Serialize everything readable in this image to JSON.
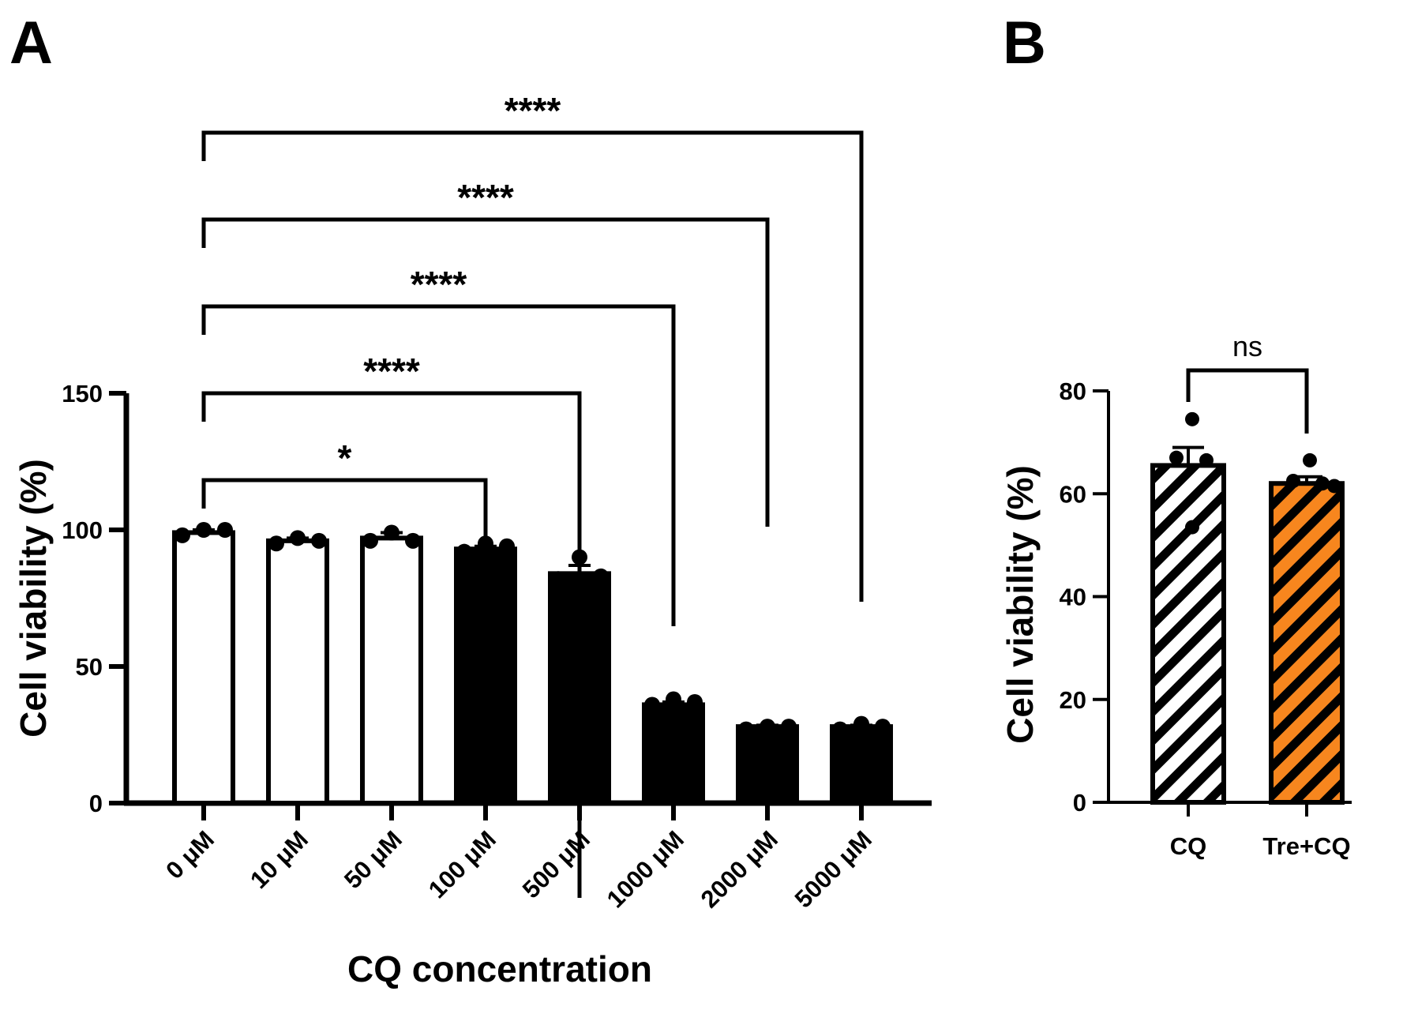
{
  "chart_data": [
    {
      "panel": "A",
      "type": "bar",
      "title": "",
      "xlabel": "CQ concentration",
      "ylabel": "Cell viability (%)",
      "ylim": [
        0,
        150
      ],
      "yticks": [
        0,
        50,
        100,
        150
      ],
      "grid": false,
      "categories": [
        "0 μM",
        "10 μM",
        "50 μM",
        "100 μM",
        "500 μM",
        "1000 μM",
        "2000 μM",
        "5000 μM"
      ],
      "values": [
        99,
        96,
        97,
        93,
        84,
        36,
        28,
        28
      ],
      "errors": [
        1,
        1,
        2,
        1,
        3,
        1,
        0.5,
        0.5
      ],
      "fills": [
        "white",
        "white",
        "white",
        "black",
        "black",
        "black",
        "black",
        "black"
      ],
      "points": [
        [
          98,
          100,
          100
        ],
        [
          95,
          97,
          96
        ],
        [
          96,
          99,
          96
        ],
        [
          92,
          95,
          94
        ],
        [
          82,
          90,
          83
        ],
        [
          36,
          38,
          37
        ],
        [
          27,
          28,
          28
        ],
        [
          27,
          29,
          28
        ]
      ],
      "comparisons": [
        {
          "from": "0 μM",
          "to": "100 μM",
          "label": "*"
        },
        {
          "from": "0 μM",
          "to": "500 μM",
          "label": "****"
        },
        {
          "from": "0 μM",
          "to": "1000 μM",
          "label": "****"
        },
        {
          "from": "0 μM",
          "to": "2000 μM",
          "label": "****"
        },
        {
          "from": "0 μM",
          "to": "5000 μM",
          "label": "****"
        }
      ]
    },
    {
      "panel": "B",
      "type": "bar",
      "title": "",
      "xlabel": "",
      "ylabel": "Cell viability (%)",
      "ylim": [
        0,
        80
      ],
      "yticks": [
        0,
        20,
        40,
        60,
        80
      ],
      "grid": false,
      "categories": [
        "CQ",
        "Tre+CQ"
      ],
      "values": [
        65.5,
        62
      ],
      "errors": [
        3.5,
        1.3
      ],
      "colors": [
        "#ffffff",
        "#f7861e"
      ],
      "points": [
        [
          74.5,
          67,
          66.5,
          53.5
        ],
        [
          66.5,
          62.5,
          62,
          61.5
        ]
      ],
      "comparisons": [
        {
          "from": "CQ",
          "to": "Tre+CQ",
          "label": "ns"
        }
      ]
    }
  ]
}
